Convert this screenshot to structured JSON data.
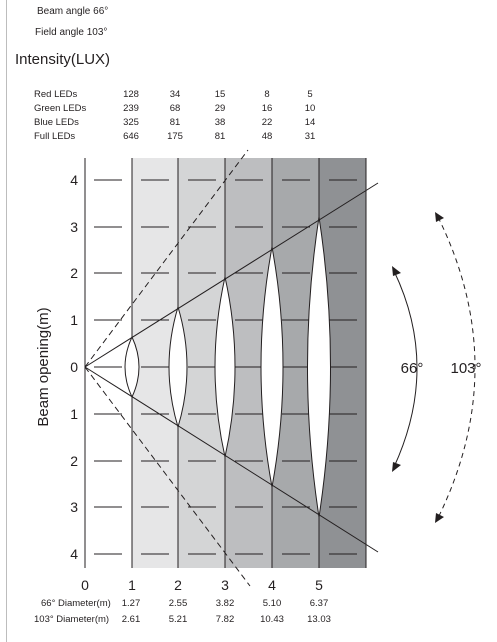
{
  "specs": {
    "beam_angle_label": "Beam angle",
    "beam_angle_value": "66°",
    "field_angle_label": "Field angle",
    "field_angle_value": "103°"
  },
  "intensity": {
    "title": "Intensity(LUX)",
    "rows": [
      {
        "label": "Red LEDs",
        "values": [
          "128",
          "34",
          "15",
          "8",
          "5"
        ]
      },
      {
        "label": "Green LEDs",
        "values": [
          "239",
          "68",
          "29",
          "16",
          "10"
        ]
      },
      {
        "label": "Blue LEDs",
        "values": [
          "325",
          "81",
          "38",
          "22",
          "14"
        ]
      },
      {
        "label": "Full LEDs",
        "values": [
          "646",
          "175",
          "81",
          "48",
          "31"
        ]
      }
    ]
  },
  "diagram": {
    "y_axis_label": "Beam opening(m)",
    "y_ticks": [
      "4",
      "3",
      "2",
      "1",
      "0",
      "1",
      "2",
      "3",
      "4"
    ],
    "x_ticks": [
      "0",
      "1",
      "2",
      "3",
      "4",
      "5"
    ],
    "zone_colors": [
      "#e6e6e7",
      "#d4d5d6",
      "#bdbec0",
      "#a7a9ab",
      "#8f9194"
    ],
    "beam_angle_label": "66°",
    "field_angle_label": "103°",
    "beam_half_angle_deg": 33,
    "field_half_angle_deg": 51.5
  },
  "diameters": {
    "beam_label": "66° Diameter(m)",
    "field_label": "103° Diameter(m)",
    "beam_values": [
      "1.27",
      "2.55",
      "3.82",
      "5.10",
      "6.37"
    ],
    "field_values": [
      "2.61",
      "5.21",
      "7.82",
      "10.43",
      "13.03"
    ]
  }
}
